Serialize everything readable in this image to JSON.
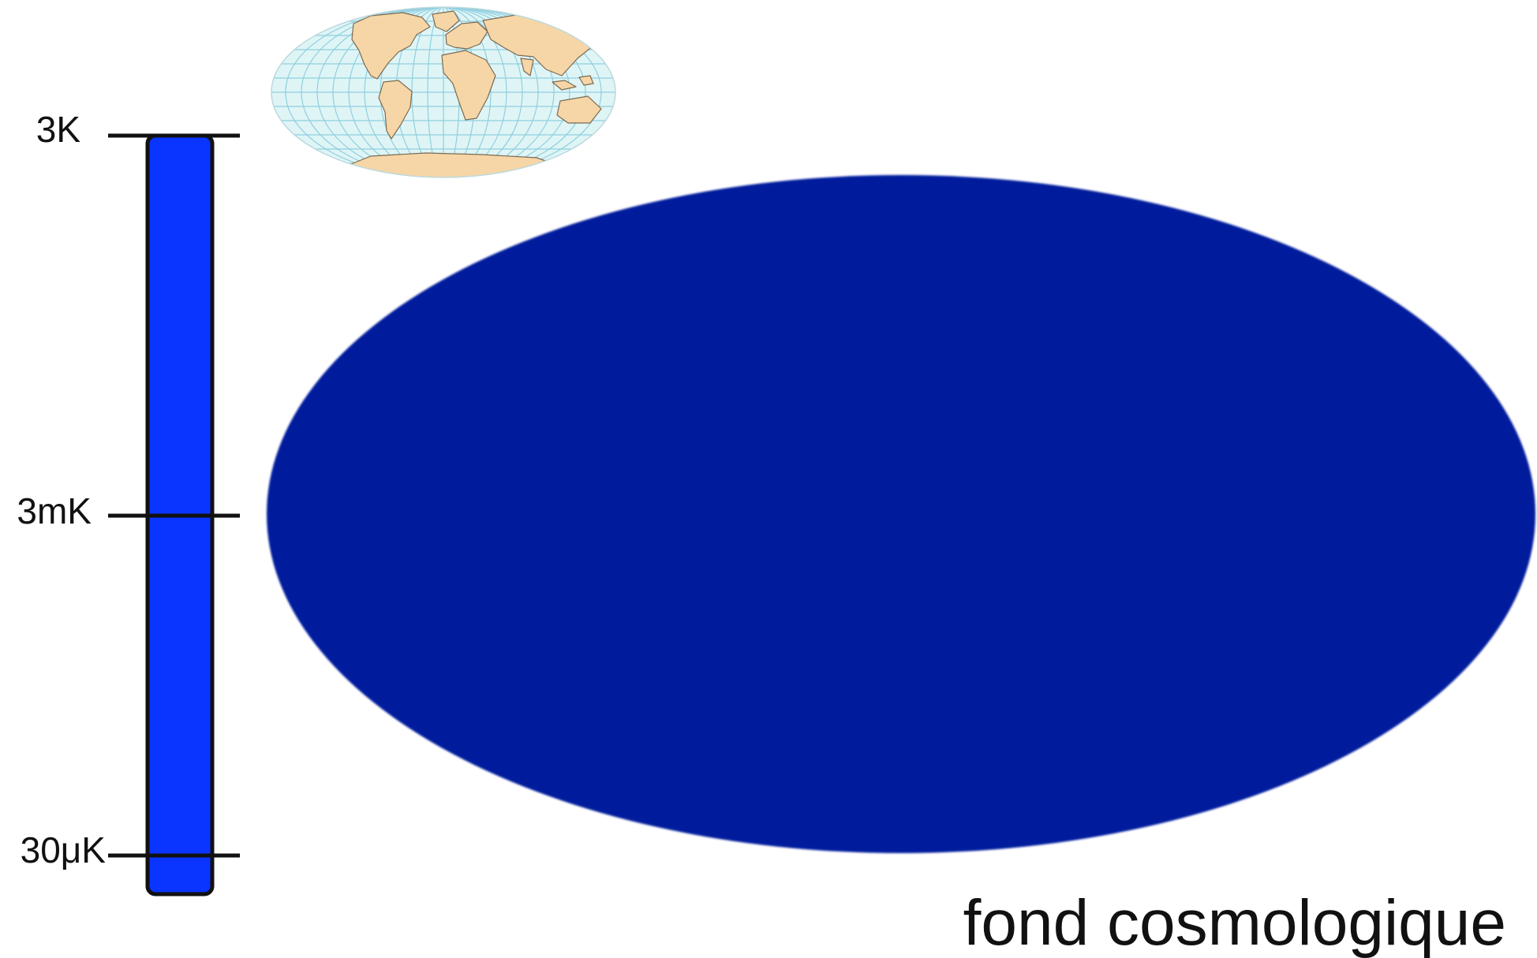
{
  "scale": {
    "labels": [
      "3K",
      "3mK",
      "30μK"
    ],
    "bar_color": "#0a34ff",
    "outline_color": "#111111"
  },
  "globe_thumbnail": {
    "icon": "world-map-mollweide-icon",
    "ocean_color": "#dff5f5",
    "land_color": "#f6d6a6",
    "grid_color": "#8fcfe0"
  },
  "sky_map": {
    "color": "#061c9c"
  },
  "caption": "fond cosmologique"
}
